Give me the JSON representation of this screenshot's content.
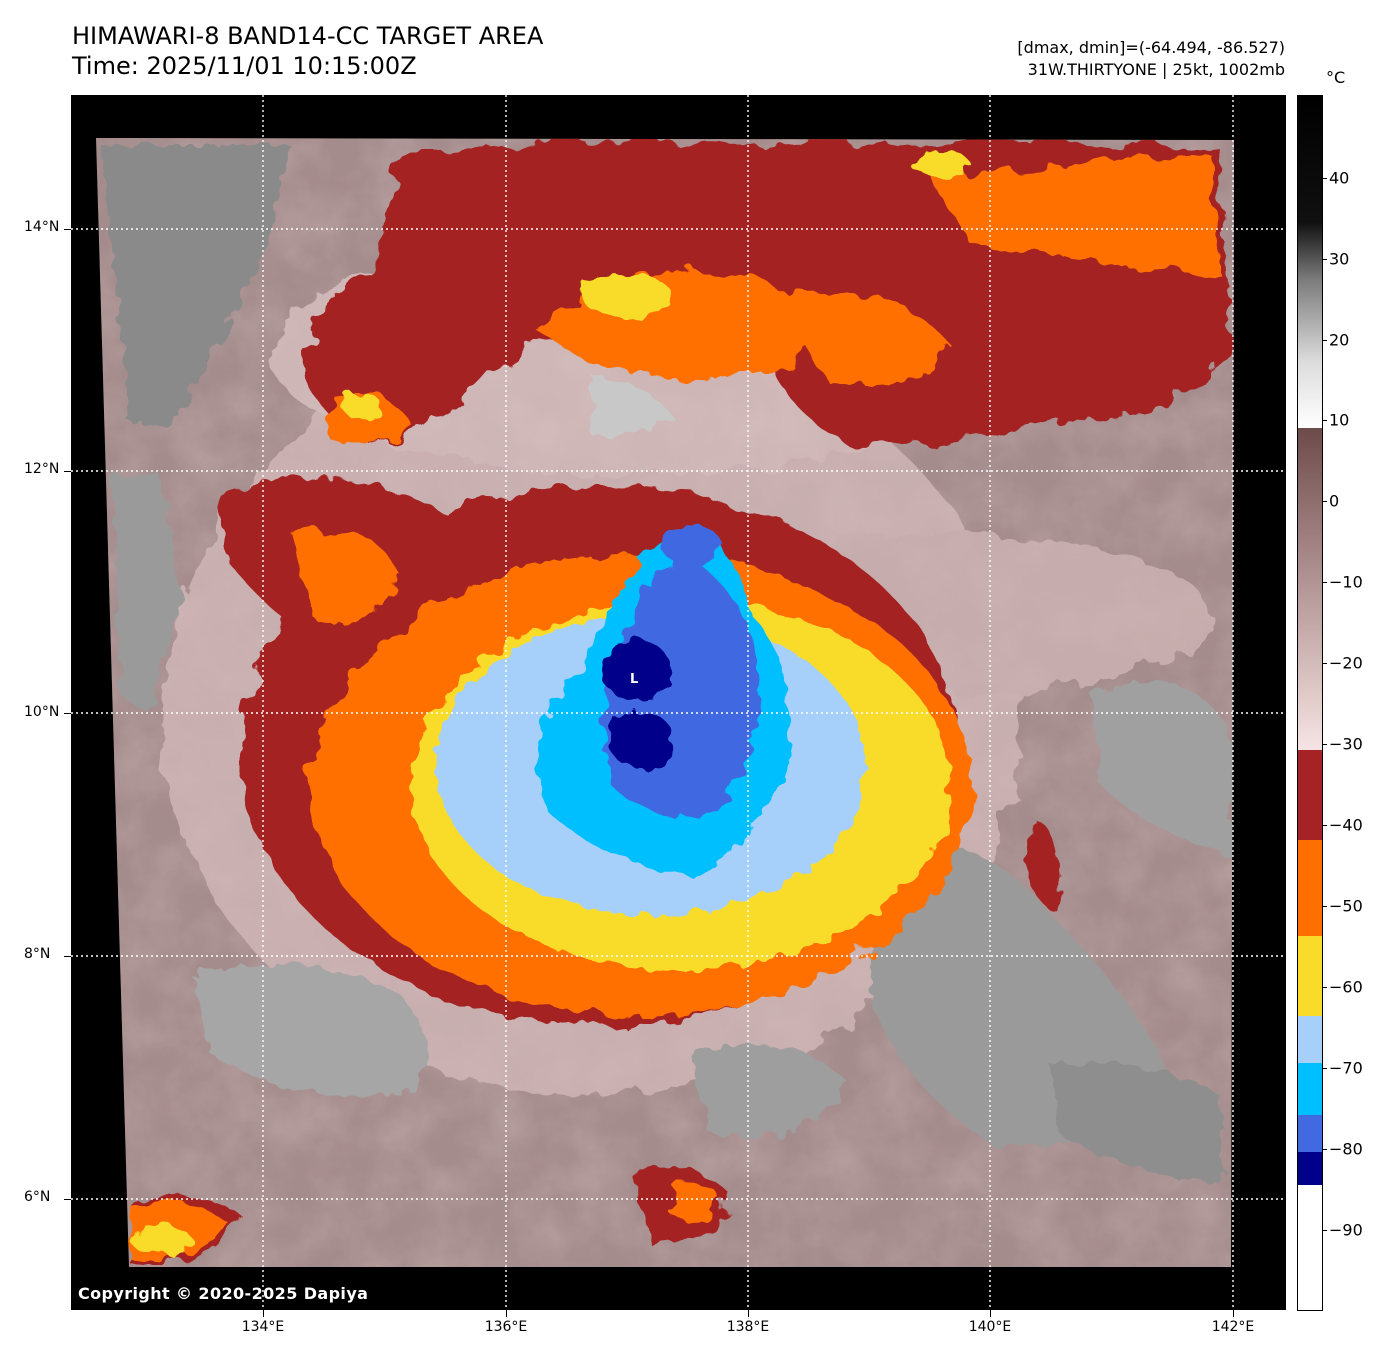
{
  "header": {
    "title": "HIMAWARI-8 BAND14-CC TARGET AREA",
    "time": "Time: 2025/11/01 10:15:00Z",
    "range": "[dmax, dmin]=(-64.494, -86.527)",
    "storm": "31W.THIRTYONE | 25kt, 1002mb"
  },
  "map": {
    "center_marker": "L",
    "copyright": "Copyright © 2020-2025 Dapiya",
    "lat_labels": [
      "14°N",
      "12°N",
      "10°N",
      "8°N",
      "6°N"
    ],
    "lon_labels": [
      "134°E",
      "136°E",
      "138°E",
      "140°E",
      "142°E"
    ],
    "gridline_style": "white dotted",
    "colors": {
      "cold_core": "#00008b",
      "royal_blue": "#4169e1",
      "deep_sky": "#00bfff",
      "light_blue": "#a6d0fa",
      "yellow": "#f9dc2a",
      "orange": "#ff6f00",
      "dark_red": "#a52324",
      "pink_brown": "#8c6a6a",
      "gray": "#8a8a8a"
    }
  },
  "colorbar": {
    "unit": "°C",
    "labels": [
      "40",
      "30",
      "20",
      "10",
      "0",
      "−10",
      "−20",
      "−30",
      "−40",
      "−50",
      "−60",
      "−70",
      "−80",
      "−90"
    ]
  }
}
